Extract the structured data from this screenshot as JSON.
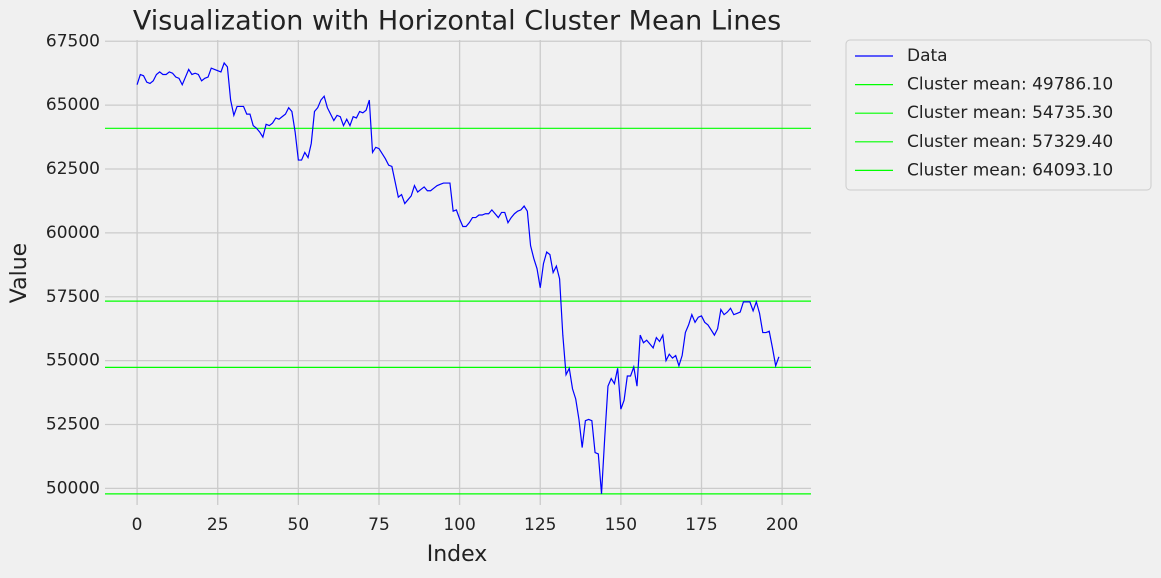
{
  "chart_data": {
    "type": "line",
    "title": "Visualization with Horizontal Cluster Mean Lines",
    "xlabel": "Index",
    "ylabel": "Value",
    "x": [
      0,
      1,
      2,
      3,
      4,
      5,
      6,
      7,
      8,
      9,
      10,
      11,
      12,
      13,
      14,
      15,
      16,
      17,
      18,
      19,
      20,
      21,
      22,
      23,
      24,
      25,
      26,
      27,
      28,
      29,
      30,
      31,
      32,
      33,
      34,
      35,
      36,
      37,
      38,
      39,
      40,
      41,
      42,
      43,
      44,
      45,
      46,
      47,
      48,
      49,
      50,
      51,
      52,
      53,
      54,
      55,
      56,
      57,
      58,
      59,
      60,
      61,
      62,
      63,
      64,
      65,
      66,
      67,
      68,
      69,
      70,
      71,
      72,
      73,
      74,
      75,
      76,
      77,
      78,
      79,
      80,
      81,
      82,
      83,
      84,
      85,
      86,
      87,
      88,
      89,
      90,
      91,
      92,
      93,
      94,
      95,
      96,
      97,
      98,
      99,
      100,
      101,
      102,
      103,
      104,
      105,
      106,
      107,
      108,
      109,
      110,
      111,
      112,
      113,
      114,
      115,
      116,
      117,
      118,
      119,
      120,
      121,
      122,
      123,
      124,
      125,
      126,
      127,
      128,
      129,
      130,
      131,
      132,
      133,
      134,
      135,
      136,
      137,
      138,
      139,
      140,
      141,
      142,
      143,
      144,
      145,
      146,
      147,
      148,
      149,
      150,
      151,
      152,
      153,
      154,
      155,
      156,
      157,
      158,
      159,
      160,
      161,
      162,
      163,
      164,
      165,
      166,
      167,
      168,
      169,
      170,
      171,
      172,
      173,
      174,
      175,
      176,
      177,
      178,
      179,
      180,
      181,
      182,
      183,
      184,
      185,
      186,
      187,
      188,
      189,
      190,
      191,
      192,
      193,
      194,
      195,
      196,
      197,
      198,
      199
    ],
    "series": [
      {
        "name": "Data",
        "color": "#0000ff",
        "values": [
          65800,
          66200,
          66150,
          65900,
          65850,
          65950,
          66200,
          66300,
          66200,
          66200,
          66300,
          66250,
          66100,
          66050,
          65800,
          66100,
          66400,
          66200,
          66250,
          66200,
          65950,
          66050,
          66100,
          66450,
          66400,
          66350,
          66300,
          66650,
          66500,
          65200,
          64600,
          64950,
          64950,
          64950,
          64650,
          64650,
          64200,
          64100,
          63950,
          63750,
          64250,
          64200,
          64300,
          64500,
          64450,
          64550,
          64650,
          64900,
          64750,
          63950,
          62850,
          62850,
          63150,
          62950,
          63500,
          64750,
          64900,
          65200,
          65350,
          64900,
          64650,
          64400,
          64600,
          64550,
          64200,
          64450,
          64200,
          64550,
          64500,
          64750,
          64700,
          64800,
          65200,
          63150,
          63350,
          63300,
          63100,
          62900,
          62650,
          62600,
          62000,
          61400,
          61500,
          61150,
          61300,
          61450,
          61850,
          61600,
          61700,
          61800,
          61650,
          61650,
          61750,
          61850,
          61900,
          61950,
          61950,
          61950,
          60850,
          60900,
          60550,
          60250,
          60250,
          60400,
          60600,
          60600,
          60700,
          60700,
          60750,
          60750,
          60900,
          60750,
          60600,
          60800,
          60800,
          60400,
          60600,
          60750,
          60850,
          60900,
          61050,
          60850,
          59500,
          59000,
          58600,
          57850,
          58800,
          59250,
          59150,
          58450,
          58700,
          58200,
          56000,
          54450,
          54700,
          53900,
          53500,
          52700,
          51600,
          52650,
          52700,
          52650,
          51400,
          51350,
          49786,
          52000,
          54000,
          54300,
          54100,
          54700,
          53100,
          53450,
          54400,
          54400,
          54750,
          54000,
          56000,
          55700,
          55800,
          55650,
          55500,
          55900,
          55750,
          56000,
          55000,
          55250,
          55100,
          55200,
          54800,
          55200,
          56100,
          56400,
          56800,
          56500,
          56700,
          56750,
          56500,
          56400,
          56200,
          56000,
          56250,
          57000,
          56800,
          56900,
          57050,
          56800,
          56850,
          56900,
          57300,
          57300,
          57300,
          56950,
          57300,
          56850,
          56100,
          56100,
          56150,
          55500,
          54800,
          55150
        ]
      }
    ],
    "hlines": [
      {
        "name": "Cluster mean: 49786.10",
        "color": "#00ff00",
        "value": 49786.1
      },
      {
        "name": "Cluster mean: 54735.30",
        "color": "#00ff00",
        "value": 54735.3
      },
      {
        "name": "Cluster mean: 57329.40",
        "color": "#00ff00",
        "value": 57329.4
      },
      {
        "name": "Cluster mean: 64093.10",
        "color": "#00ff00",
        "value": 64093.1
      }
    ],
    "xlim": [
      -9.95,
      208.95
    ],
    "ylim": [
      49350,
      67550
    ],
    "xticks": [
      0,
      25,
      50,
      75,
      100,
      125,
      150,
      175,
      200
    ],
    "yticks": [
      50000,
      52500,
      55000,
      57500,
      60000,
      62500,
      65000,
      67500
    ],
    "grid": true,
    "legend": "outside upper right"
  }
}
